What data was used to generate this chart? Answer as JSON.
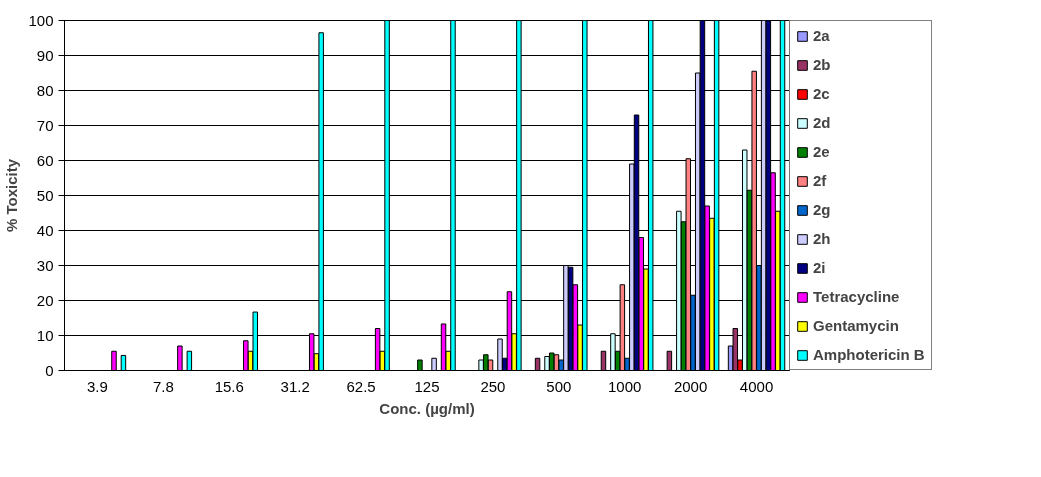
{
  "chart_data": {
    "type": "bar",
    "xlabel": "Conc. (µg/ml)",
    "ylabel": "% Toxicity",
    "categories": [
      "3.9",
      "7.8",
      "15.6",
      "31.2",
      "62.5",
      "125",
      "250",
      "500",
      "1000",
      "2000",
      "4000"
    ],
    "ylim": [
      0,
      100
    ],
    "yticks": [
      0,
      10,
      20,
      30,
      40,
      50,
      60,
      70,
      80,
      90,
      100
    ],
    "grid": "y",
    "legend": "right",
    "series": [
      {
        "name": "2a",
        "color": "#9999ff",
        "values": [
          null,
          null,
          null,
          null,
          null,
          null,
          null,
          null,
          null,
          null,
          7
        ]
      },
      {
        "name": "2b",
        "color": "#993366",
        "values": [
          null,
          null,
          null,
          null,
          null,
          null,
          null,
          3.5,
          5.5,
          5.5,
          12
        ]
      },
      {
        "name": "2c",
        "color": "#ff0000",
        "values": [
          null,
          null,
          null,
          null,
          null,
          null,
          null,
          null,
          null,
          null,
          3
        ]
      },
      {
        "name": "2d",
        "color": "#ccffff",
        "values": [
          null,
          null,
          null,
          null,
          null,
          null,
          3,
          4,
          10.5,
          45.5,
          63
        ]
      },
      {
        "name": "2e",
        "color": "#008000",
        "values": [
          null,
          null,
          null,
          null,
          null,
          3,
          4.5,
          5,
          5.5,
          42.5,
          51.5
        ]
      },
      {
        "name": "2f",
        "color": "#ff8080",
        "values": [
          null,
          null,
          null,
          null,
          null,
          null,
          3,
          4.5,
          24.5,
          60.5,
          85.5
        ]
      },
      {
        "name": "2g",
        "color": "#0066cc",
        "values": [
          null,
          null,
          null,
          null,
          null,
          null,
          null,
          3,
          3.5,
          21.5,
          30
        ]
      },
      {
        "name": "2h",
        "color": "#ccccff",
        "values": [
          null,
          null,
          null,
          null,
          null,
          3.5,
          9,
          30,
          59,
          85,
          100
        ]
      },
      {
        "name": "2i",
        "color": "#000080",
        "values": [
          null,
          null,
          null,
          null,
          null,
          null,
          3.5,
          29.5,
          73,
          100,
          100
        ]
      },
      {
        "name": "Tetracycline",
        "color": "#ff00ff",
        "values": [
          5.5,
          7,
          8.5,
          10.5,
          12,
          13.3,
          22.5,
          24.5,
          38,
          47,
          56.5
        ]
      },
      {
        "name": "Gentamycin",
        "color": "#ffff00",
        "values": [
          null,
          null,
          5.5,
          4.8,
          5.5,
          5.5,
          10.5,
          13,
          29,
          43.5,
          45.5
        ]
      },
      {
        "name": "Amphotericin B",
        "color": "#00ffff",
        "values": [
          4.3,
          5.5,
          16.7,
          96.5,
          100,
          100,
          100,
          100,
          100,
          100,
          100
        ]
      }
    ]
  }
}
